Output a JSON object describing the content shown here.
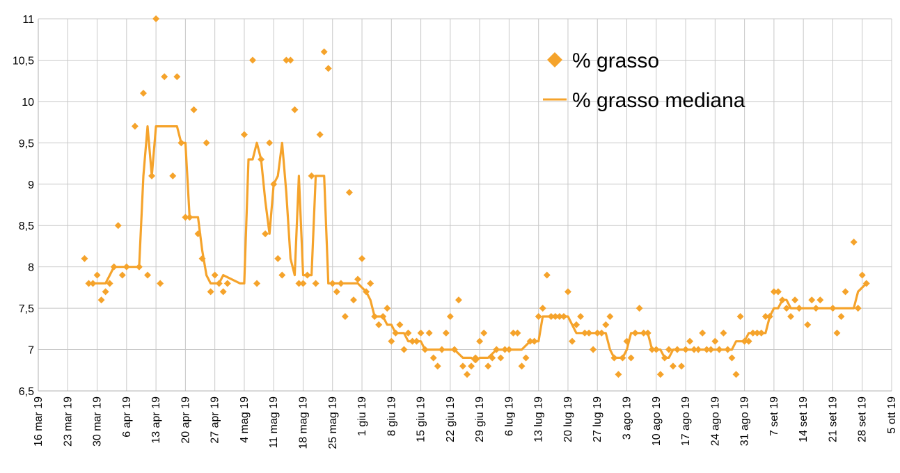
{
  "chart_data": {
    "type": "scatter",
    "title": "",
    "xlabel": "",
    "ylabel": "",
    "x_axis": {
      "start_day": 0,
      "end_day": 203,
      "tick_step_days": 7,
      "tick_labels": [
        "16 mar 19",
        "23 mar 19",
        "30 mar 19",
        "6 apr 19",
        "13 apr 19",
        "20 apr 19",
        "27 apr 19",
        "4 mag 19",
        "11 mag 19",
        "18 mag 19",
        "25 mag 19",
        "1 giu 19",
        "8 giu 19",
        "15 giu 19",
        "22 giu 19",
        "29 giu 19",
        "6 lug 19",
        "13 lug 19",
        "20 lug 19",
        "27 lug 19",
        "3 ago 19",
        "10 ago 19",
        "17 ago 19",
        "24 ago 19",
        "31 ago 19",
        "7 set 19",
        "14 set 19",
        "21 set 19",
        "28 set 19",
        "5 ott 19"
      ]
    },
    "y_axis": {
      "ylim": [
        6.5,
        11
      ],
      "ticks": [
        6.5,
        7,
        7.5,
        8,
        8.5,
        9,
        9.5,
        10,
        10.5,
        11
      ],
      "tick_labels": [
        "6,5",
        "7",
        "7,5",
        "8",
        "8,5",
        "9",
        "9,5",
        "10",
        "10,5",
        "11"
      ]
    },
    "grid": true,
    "legend_position": "top-right",
    "series": [
      {
        "name": "% grasso",
        "kind": "scatter",
        "color": "#f5a32b",
        "marker": "diamond",
        "points": [
          [
            11,
            8.1
          ],
          [
            12,
            7.8
          ],
          [
            13,
            7.8
          ],
          [
            14,
            7.9
          ],
          [
            15,
            7.6
          ],
          [
            16,
            7.7
          ],
          [
            17,
            7.8
          ],
          [
            18,
            8.0
          ],
          [
            19,
            8.5
          ],
          [
            20,
            7.9
          ],
          [
            21,
            8.0
          ],
          [
            23,
            9.7
          ],
          [
            24,
            8.0
          ],
          [
            25,
            10.1
          ],
          [
            26,
            7.9
          ],
          [
            27,
            9.1
          ],
          [
            28,
            11.0
          ],
          [
            29,
            7.8
          ],
          [
            30,
            10.3
          ],
          [
            32,
            9.1
          ],
          [
            33,
            10.3
          ],
          [
            34,
            9.5
          ],
          [
            35,
            8.6
          ],
          [
            36,
            8.6
          ],
          [
            37,
            9.9
          ],
          [
            38,
            8.4
          ],
          [
            39,
            8.1
          ],
          [
            40,
            9.5
          ],
          [
            41,
            7.7
          ],
          [
            42,
            7.9
          ],
          [
            43,
            7.8
          ],
          [
            44,
            7.7
          ],
          [
            45,
            7.8
          ],
          [
            49,
            9.6
          ],
          [
            51,
            10.5
          ],
          [
            52,
            7.8
          ],
          [
            53,
            9.3
          ],
          [
            54,
            8.4
          ],
          [
            55,
            9.5
          ],
          [
            56,
            9.0
          ],
          [
            57,
            8.1
          ],
          [
            58,
            7.9
          ],
          [
            59,
            10.5
          ],
          [
            60,
            10.5
          ],
          [
            61,
            9.9
          ],
          [
            62,
            7.8
          ],
          [
            63,
            7.8
          ],
          [
            64,
            7.9
          ],
          [
            65,
            9.1
          ],
          [
            66,
            7.8
          ],
          [
            67,
            9.6
          ],
          [
            68,
            10.6
          ],
          [
            69,
            10.4
          ],
          [
            70,
            7.8
          ],
          [
            71,
            7.7
          ],
          [
            72,
            7.8
          ],
          [
            73,
            7.4
          ],
          [
            74,
            8.9
          ],
          [
            75,
            7.6
          ],
          [
            76,
            7.85
          ],
          [
            77,
            8.1
          ],
          [
            78,
            7.7
          ],
          [
            79,
            7.8
          ],
          [
            80,
            7.4
          ],
          [
            81,
            7.3
          ],
          [
            82,
            7.4
          ],
          [
            83,
            7.5
          ],
          [
            84,
            7.1
          ],
          [
            85,
            7.2
          ],
          [
            86,
            7.3
          ],
          [
            87,
            7.0
          ],
          [
            88,
            7.2
          ],
          [
            89,
            7.1
          ],
          [
            90,
            7.1
          ],
          [
            91,
            7.2
          ],
          [
            92,
            7.0
          ],
          [
            93,
            7.2
          ],
          [
            94,
            6.9
          ],
          [
            95,
            6.8
          ],
          [
            96,
            7.0
          ],
          [
            97,
            7.2
          ],
          [
            98,
            7.4
          ],
          [
            99,
            7.0
          ],
          [
            100,
            7.6
          ],
          [
            101,
            6.8
          ],
          [
            102,
            6.7
          ],
          [
            103,
            6.8
          ],
          [
            104,
            6.9
          ],
          [
            105,
            7.1
          ],
          [
            106,
            7.2
          ],
          [
            107,
            6.8
          ],
          [
            108,
            6.9
          ],
          [
            109,
            7.0
          ],
          [
            110,
            6.9
          ],
          [
            111,
            7.0
          ],
          [
            112,
            7.0
          ],
          [
            113,
            7.2
          ],
          [
            114,
            7.2
          ],
          [
            115,
            6.8
          ],
          [
            116,
            6.9
          ],
          [
            117,
            7.1
          ],
          [
            118,
            7.1
          ],
          [
            119,
            7.4
          ],
          [
            120,
            7.5
          ],
          [
            121,
            7.9
          ],
          [
            122,
            7.4
          ],
          [
            123,
            7.4
          ],
          [
            124,
            7.4
          ],
          [
            125,
            7.4
          ],
          [
            126,
            7.7
          ],
          [
            127,
            7.1
          ],
          [
            128,
            7.3
          ],
          [
            129,
            7.4
          ],
          [
            130,
            7.2
          ],
          [
            131,
            7.2
          ],
          [
            132,
            7.0
          ],
          [
            133,
            7.2
          ],
          [
            134,
            7.2
          ],
          [
            135,
            7.3
          ],
          [
            136,
            7.4
          ],
          [
            137,
            6.9
          ],
          [
            138,
            6.7
          ],
          [
            139,
            6.9
          ],
          [
            140,
            7.1
          ],
          [
            141,
            6.9
          ],
          [
            142,
            7.2
          ],
          [
            143,
            7.5
          ],
          [
            144,
            7.2
          ],
          [
            145,
            7.2
          ],
          [
            146,
            7.0
          ],
          [
            147,
            7.0
          ],
          [
            148,
            6.7
          ],
          [
            149,
            6.9
          ],
          [
            150,
            7.0
          ],
          [
            151,
            6.8
          ],
          [
            152,
            7.0
          ],
          [
            153,
            6.8
          ],
          [
            154,
            7.0
          ],
          [
            155,
            7.1
          ],
          [
            156,
            7.0
          ],
          [
            157,
            7.0
          ],
          [
            158,
            7.2
          ],
          [
            159,
            7.0
          ],
          [
            160,
            7.0
          ],
          [
            161,
            7.1
          ],
          [
            162,
            7.0
          ],
          [
            163,
            7.2
          ],
          [
            164,
            7.0
          ],
          [
            165,
            6.9
          ],
          [
            166,
            6.7
          ],
          [
            167,
            7.4
          ],
          [
            168,
            7.1
          ],
          [
            169,
            7.1
          ],
          [
            170,
            7.2
          ],
          [
            171,
            7.2
          ],
          [
            172,
            7.2
          ],
          [
            173,
            7.4
          ],
          [
            174,
            7.4
          ],
          [
            175,
            7.7
          ],
          [
            176,
            7.7
          ],
          [
            177,
            7.6
          ],
          [
            178,
            7.5
          ],
          [
            179,
            7.4
          ],
          [
            180,
            7.6
          ],
          [
            181,
            7.5
          ],
          [
            183,
            7.3
          ],
          [
            184,
            7.6
          ],
          [
            185,
            7.5
          ],
          [
            186,
            7.6
          ],
          [
            189,
            7.5
          ],
          [
            190,
            7.2
          ],
          [
            191,
            7.4
          ],
          [
            192,
            7.7
          ],
          [
            194,
            8.3
          ],
          [
            195,
            7.5
          ],
          [
            196,
            7.9
          ],
          [
            197,
            7.8
          ]
        ]
      },
      {
        "name": "% grasso mediana",
        "kind": "line",
        "color": "#f5a32b",
        "points": [
          [
            12,
            7.8
          ],
          [
            16,
            7.8
          ],
          [
            17,
            7.9
          ],
          [
            18,
            8.0
          ],
          [
            24,
            8.0
          ],
          [
            25,
            9.1
          ],
          [
            26,
            9.7
          ],
          [
            27,
            9.1
          ],
          [
            28,
            9.7
          ],
          [
            33,
            9.7
          ],
          [
            34,
            9.5
          ],
          [
            35,
            9.5
          ],
          [
            36,
            8.6
          ],
          [
            38,
            8.6
          ],
          [
            39,
            8.2
          ],
          [
            40,
            7.9
          ],
          [
            41,
            7.8
          ],
          [
            43,
            7.8
          ],
          [
            44,
            7.9
          ],
          [
            48,
            7.8
          ],
          [
            49,
            7.8
          ],
          [
            50,
            9.3
          ],
          [
            51,
            9.3
          ],
          [
            52,
            9.5
          ],
          [
            53,
            9.3
          ],
          [
            54,
            8.8
          ],
          [
            55,
            8.4
          ],
          [
            56,
            9.0
          ],
          [
            57,
            9.1
          ],
          [
            58,
            9.5
          ],
          [
            59,
            8.9
          ],
          [
            60,
            8.1
          ],
          [
            61,
            7.9
          ],
          [
            62,
            9.1
          ],
          [
            63,
            7.9
          ],
          [
            64,
            7.9
          ],
          [
            65,
            7.9
          ],
          [
            66,
            9.1
          ],
          [
            68,
            9.1
          ],
          [
            69,
            7.8
          ],
          [
            76,
            7.8
          ],
          [
            77,
            7.75
          ],
          [
            78,
            7.7
          ],
          [
            79,
            7.6
          ],
          [
            80,
            7.4
          ],
          [
            82,
            7.4
          ],
          [
            83,
            7.3
          ],
          [
            84,
            7.3
          ],
          [
            85,
            7.2
          ],
          [
            87,
            7.2
          ],
          [
            88,
            7.1
          ],
          [
            91,
            7.1
          ],
          [
            92,
            7.0
          ],
          [
            98,
            7.0
          ],
          [
            99,
            7.0
          ],
          [
            100,
            6.95
          ],
          [
            101,
            6.9
          ],
          [
            103,
            6.9
          ],
          [
            104,
            6.85
          ],
          [
            105,
            6.9
          ],
          [
            107,
            6.9
          ],
          [
            108,
            6.95
          ],
          [
            109,
            7.0
          ],
          [
            115,
            7.0
          ],
          [
            116,
            7.05
          ],
          [
            117,
            7.1
          ],
          [
            119,
            7.1
          ],
          [
            120,
            7.4
          ],
          [
            126,
            7.4
          ],
          [
            127,
            7.3
          ],
          [
            128,
            7.2
          ],
          [
            135,
            7.2
          ],
          [
            136,
            7.0
          ],
          [
            137,
            6.9
          ],
          [
            139,
            6.9
          ],
          [
            140,
            7.0
          ],
          [
            141,
            7.2
          ],
          [
            145,
            7.2
          ],
          [
            146,
            7.0
          ],
          [
            148,
            7.0
          ],
          [
            149,
            6.9
          ],
          [
            150,
            6.9
          ],
          [
            151,
            7.0
          ],
          [
            165,
            7.0
          ],
          [
            166,
            7.1
          ],
          [
            168,
            7.1
          ],
          [
            169,
            7.2
          ],
          [
            173,
            7.2
          ],
          [
            174,
            7.4
          ],
          [
            175,
            7.5
          ],
          [
            176,
            7.5
          ],
          [
            177,
            7.6
          ],
          [
            178,
            7.6
          ],
          [
            179,
            7.5
          ],
          [
            194,
            7.5
          ],
          [
            195,
            7.7
          ],
          [
            197,
            7.8
          ]
        ]
      }
    ]
  },
  "legend": {
    "scatter_label": "% grasso",
    "line_label": "% grasso mediana",
    "marker_icon": "diamond-icon",
    "line_icon": "line-icon"
  }
}
